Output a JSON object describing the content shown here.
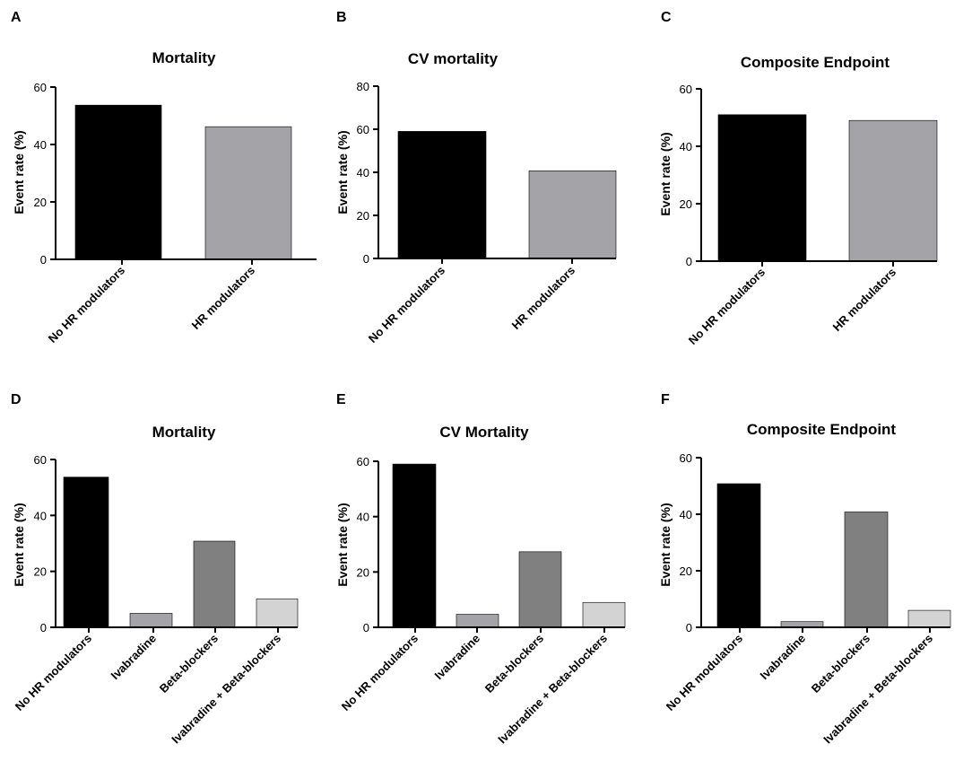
{
  "chart_data": [
    {
      "panel": "A",
      "type": "bar",
      "title": "Mortality",
      "ylabel": "Event rate (%)",
      "xlabel": "",
      "ylim": [
        0,
        60
      ],
      "yticks": [
        0,
        20,
        40,
        60
      ],
      "categories": [
        "No HR modulators",
        "HR modulators"
      ],
      "values": [
        53.7,
        46.2
      ],
      "colors": [
        "#000000",
        "#a3a3a8"
      ]
    },
    {
      "panel": "B",
      "type": "bar",
      "title": "CV mortality",
      "ylabel": "Event rate (%)",
      "xlabel": "",
      "ylim": [
        0,
        80
      ],
      "yticks": [
        0,
        20,
        40,
        60,
        80
      ],
      "categories": [
        "No HR modulators",
        "HR modulators"
      ],
      "values": [
        59,
        40.7
      ],
      "colors": [
        "#000000",
        "#a3a3a8"
      ]
    },
    {
      "panel": "C",
      "type": "bar",
      "title": "Composite Endpoint",
      "ylabel": "Event rate (%)",
      "xlabel": "",
      "ylim": [
        0,
        60
      ],
      "yticks": [
        0,
        20,
        40,
        60
      ],
      "categories": [
        "No HR modulators",
        "HR modulators"
      ],
      "values": [
        51,
        49
      ],
      "colors": [
        "#000000",
        "#a3a3a8"
      ]
    },
    {
      "panel": "D",
      "type": "bar",
      "title": "Mortality",
      "ylabel": "Event rate (%)",
      "xlabel": "",
      "ylim": [
        0,
        60
      ],
      "yticks": [
        0,
        20,
        40,
        60
      ],
      "categories": [
        "No HR modulators",
        "Ivabradine",
        "Beta-blockers",
        "Ivabradine + Beta-blockers"
      ],
      "values": [
        53.7,
        5,
        30.8,
        10.2
      ],
      "colors": [
        "#000000",
        "#a3a3a8",
        "#808080",
        "#d3d3d3"
      ]
    },
    {
      "panel": "E",
      "type": "bar",
      "title": "CV Mortality",
      "ylabel": "Event rate (%)",
      "xlabel": "",
      "ylim": [
        0,
        60
      ],
      "yticks": [
        0,
        20,
        40,
        60
      ],
      "categories": [
        "No HR modulators",
        "Ivabradine",
        "Beta-blockers",
        "Ivabradine + Beta-blockers"
      ],
      "values": [
        59,
        4.7,
        27.3,
        9
      ],
      "colors": [
        "#000000",
        "#a3a3a8",
        "#808080",
        "#d3d3d3"
      ]
    },
    {
      "panel": "F",
      "type": "bar",
      "title": "Composite Endpoint",
      "ylabel": "Event rate (%)",
      "xlabel": "",
      "ylim": [
        0,
        60
      ],
      "yticks": [
        0,
        20,
        40,
        60
      ],
      "categories": [
        "No HR modulators",
        "Ivabradine",
        "Beta-blockers",
        "Ivabradine + Beta-blockers"
      ],
      "values": [
        50.8,
        2,
        40.8,
        6
      ],
      "colors": [
        "#000000",
        "#a3a3a8",
        "#808080",
        "#d3d3d3"
      ]
    }
  ]
}
